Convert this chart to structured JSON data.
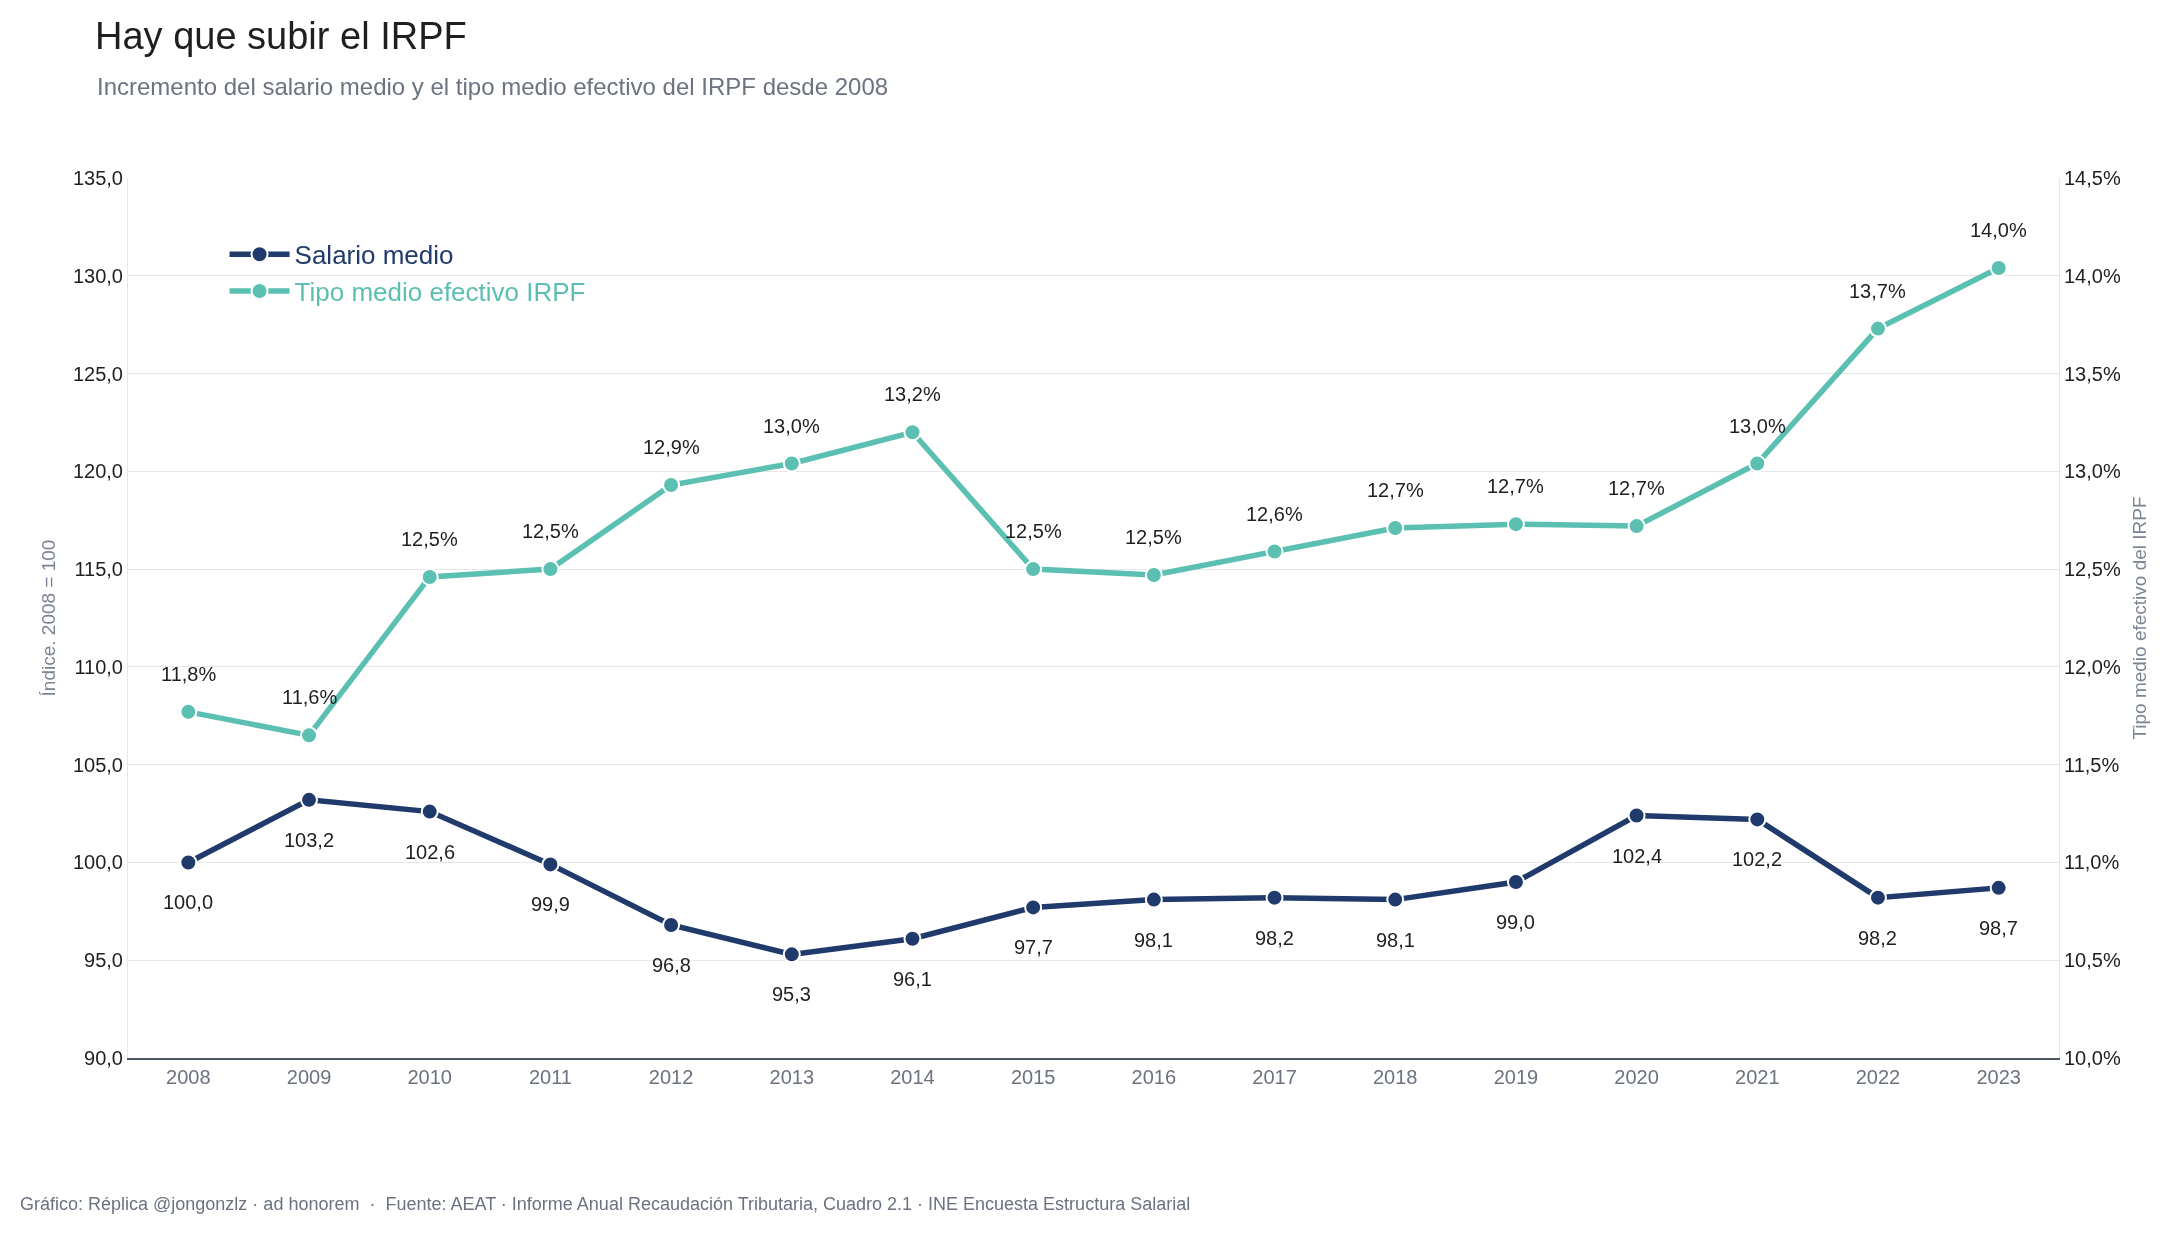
{
  "chart_data": {
    "type": "line",
    "title": "Hay que subir el IRPF",
    "subtitle": "Incremento del salario medio y el tipo medio efectivo del IRPF desde 2008",
    "ylabel": "Índice. 2008 = 100",
    "y2label": "Tipo medio efectivo del IRPF",
    "categories": [
      "2008",
      "2009",
      "2010",
      "2011",
      "2012",
      "2013",
      "2014",
      "2015",
      "2016",
      "2017",
      "2018",
      "2019",
      "2020",
      "2021",
      "2022",
      "2023"
    ],
    "series": [
      {
        "name": "Salario medio",
        "color": "#1f3a6b",
        "values": [
          100.0,
          103.2,
          102.6,
          99.9,
          96.8,
          95.3,
          96.1,
          97.7,
          98.1,
          98.2,
          98.1,
          99.0,
          102.4,
          102.2,
          98.2,
          98.7
        ],
        "value_labels": [
          "100,0",
          "103,2",
          "102,6",
          "99,9",
          "96,8",
          "95,3",
          "96,1",
          "97,7",
          "98,1",
          "98,2",
          "98,1",
          "99,0",
          "102,4",
          "102,2",
          "98,2",
          "98,7"
        ]
      },
      {
        "name": "Tipo medio efectivo IRPF",
        "color": "#5bbfb2",
        "axis": "y2",
        "values": [
          11.77,
          11.65,
          12.46,
          12.5,
          12.93,
          13.04,
          13.2,
          12.5,
          12.47,
          12.59,
          12.71,
          12.73,
          12.72,
          13.04,
          13.73,
          14.04
        ],
        "value_labels": [
          "11,8%",
          "11,6%",
          "12,5%",
          "12,5%",
          "12,9%",
          "13,0%",
          "13,2%",
          "12,5%",
          "12,5%",
          "12,6%",
          "12,7%",
          "12,7%",
          "12,7%",
          "13,0%",
          "13,7%",
          "14,0%"
        ]
      }
    ],
    "ylim": [
      90,
      135
    ],
    "yticks": [
      {
        "value": 90,
        "label": "90,0"
      },
      {
        "value": 95,
        "label": "95,0"
      },
      {
        "value": 100,
        "label": "100,0"
      },
      {
        "value": 105,
        "label": "105,0"
      },
      {
        "value": 110,
        "label": "110,0"
      },
      {
        "value": 115,
        "label": "115,0"
      },
      {
        "value": 120,
        "label": "120,0"
      },
      {
        "value": 125,
        "label": "125,0"
      },
      {
        "value": 130,
        "label": "130,0"
      },
      {
        "value": 135,
        "label": "135,0"
      }
    ],
    "y2lim": [
      10,
      14.5
    ],
    "y2ticks": [
      {
        "value": 10,
        "label": "10,0%"
      },
      {
        "value": 10.5,
        "label": "10,5%"
      },
      {
        "value": 11,
        "label": "11,0%"
      },
      {
        "value": 11.5,
        "label": "11,5%"
      },
      {
        "value": 12,
        "label": "12,0%"
      },
      {
        "value": 12.5,
        "label": "12,5%"
      },
      {
        "value": 13,
        "label": "13,0%"
      },
      {
        "value": 13.5,
        "label": "13,5%"
      },
      {
        "value": 14,
        "label": "14,0%"
      },
      {
        "value": 14.5,
        "label": "14,5%"
      }
    ],
    "grid": "y",
    "legend": "top left",
    "marker": "circle",
    "line_style": "solid",
    "annotations": [
      "Gráfico: Réplica @jongonzlz · ad honorem  ·  Fuente: AEAT · Informe Anual Recaudación Tributaria, Cuadro 2.1 · INE Encuesta Estructura Salarial"
    ]
  }
}
